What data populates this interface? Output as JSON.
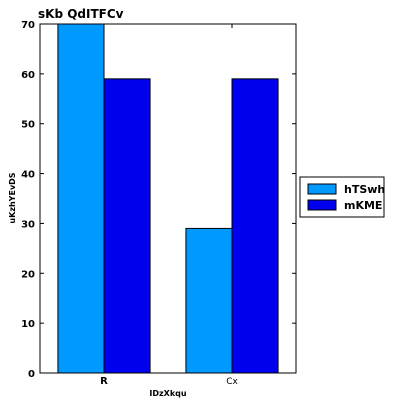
{
  "chart_data": {
    "type": "bar",
    "title": "sKb   QdITFCv",
    "xlabel": "IDzXkqu",
    "ylabel": "uKzhYEvDS",
    "categories": [
      "R",
      "Cx"
    ],
    "series": [
      {
        "name": "hTSwh",
        "values": [
          70,
          29
        ],
        "color": "#0099ff"
      },
      {
        "name": "mKME",
        "values": [
          59,
          59
        ],
        "color": "#0000ee"
      }
    ],
    "ylim": [
      0,
      70
    ],
    "yticks": [
      0,
      10,
      20,
      30,
      40,
      50,
      60,
      70
    ],
    "grid": false,
    "legend": {
      "position": "right-outside",
      "entries": [
        "hTSwh",
        "mKME"
      ]
    }
  }
}
